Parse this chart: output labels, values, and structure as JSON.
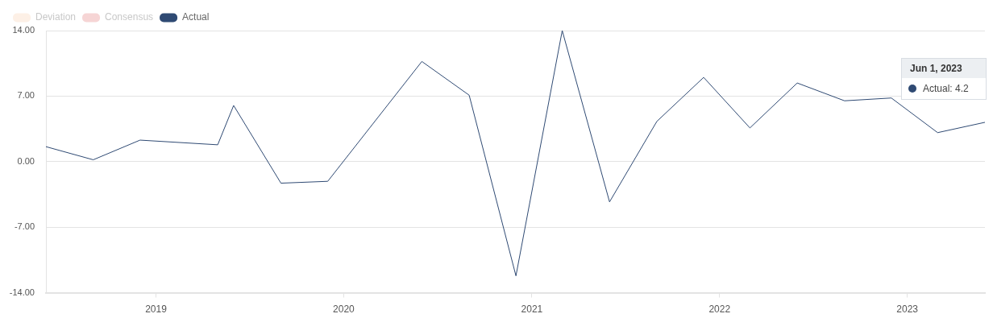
{
  "chart_data": {
    "type": "line",
    "x": [
      "2018-06-01",
      "2018-09-01",
      "2018-12-01",
      "2019-05-01",
      "2019-06-01",
      "2019-09-01",
      "2019-12-01",
      "2020-06-01",
      "2020-09-01",
      "2020-12-01",
      "2021-03-01",
      "2021-06-01",
      "2021-09-01",
      "2021-12-01",
      "2022-03-01",
      "2022-06-01",
      "2022-09-01",
      "2022-12-01",
      "2023-03-01",
      "2023-06-01"
    ],
    "series": [
      {
        "name": "Deviation",
        "color": "#fdf0e6",
        "values": [
          null,
          null,
          null,
          null,
          null,
          null,
          null,
          null,
          null,
          null,
          null,
          null,
          null,
          null,
          null,
          null,
          null,
          null,
          null,
          null
        ]
      },
      {
        "name": "Consensus",
        "color": "#f6d5d5",
        "values": [
          null,
          null,
          null,
          null,
          null,
          null,
          null,
          null,
          null,
          null,
          null,
          null,
          null,
          null,
          null,
          null,
          null,
          null,
          null,
          null
        ]
      },
      {
        "name": "Actual",
        "color": "#2f4a73",
        "values": [
          1.6,
          0.2,
          2.3,
          1.8,
          6.0,
          -2.3,
          -2.1,
          10.7,
          7.1,
          -12.2,
          14.0,
          -4.3,
          4.3,
          9.0,
          3.6,
          8.4,
          6.5,
          6.8,
          3.1,
          4.2
        ]
      }
    ],
    "xlim": [
      "2018-06-01",
      "2023-06-01"
    ],
    "xticks": [
      {
        "value": "2019",
        "label": "2019"
      },
      {
        "value": "2020",
        "label": "2020"
      },
      {
        "value": "2021",
        "label": "2021"
      },
      {
        "value": "2022",
        "label": "2022"
      },
      {
        "value": "2023",
        "label": "2023"
      }
    ],
    "ylim": [
      -14,
      14
    ],
    "yticks": [
      {
        "value": 14,
        "label": "14.00"
      },
      {
        "value": 7,
        "label": "7.00"
      },
      {
        "value": 0,
        "label": "0.00"
      },
      {
        "value": -7,
        "label": "-7.00"
      },
      {
        "value": -14,
        "label": "-14.00"
      }
    ],
    "grid": "y",
    "legend": "top left",
    "marker": "none",
    "line_style": "solid",
    "annotations": [
      "Jun 1, 2023",
      "Actual: 4.2"
    ]
  }
}
